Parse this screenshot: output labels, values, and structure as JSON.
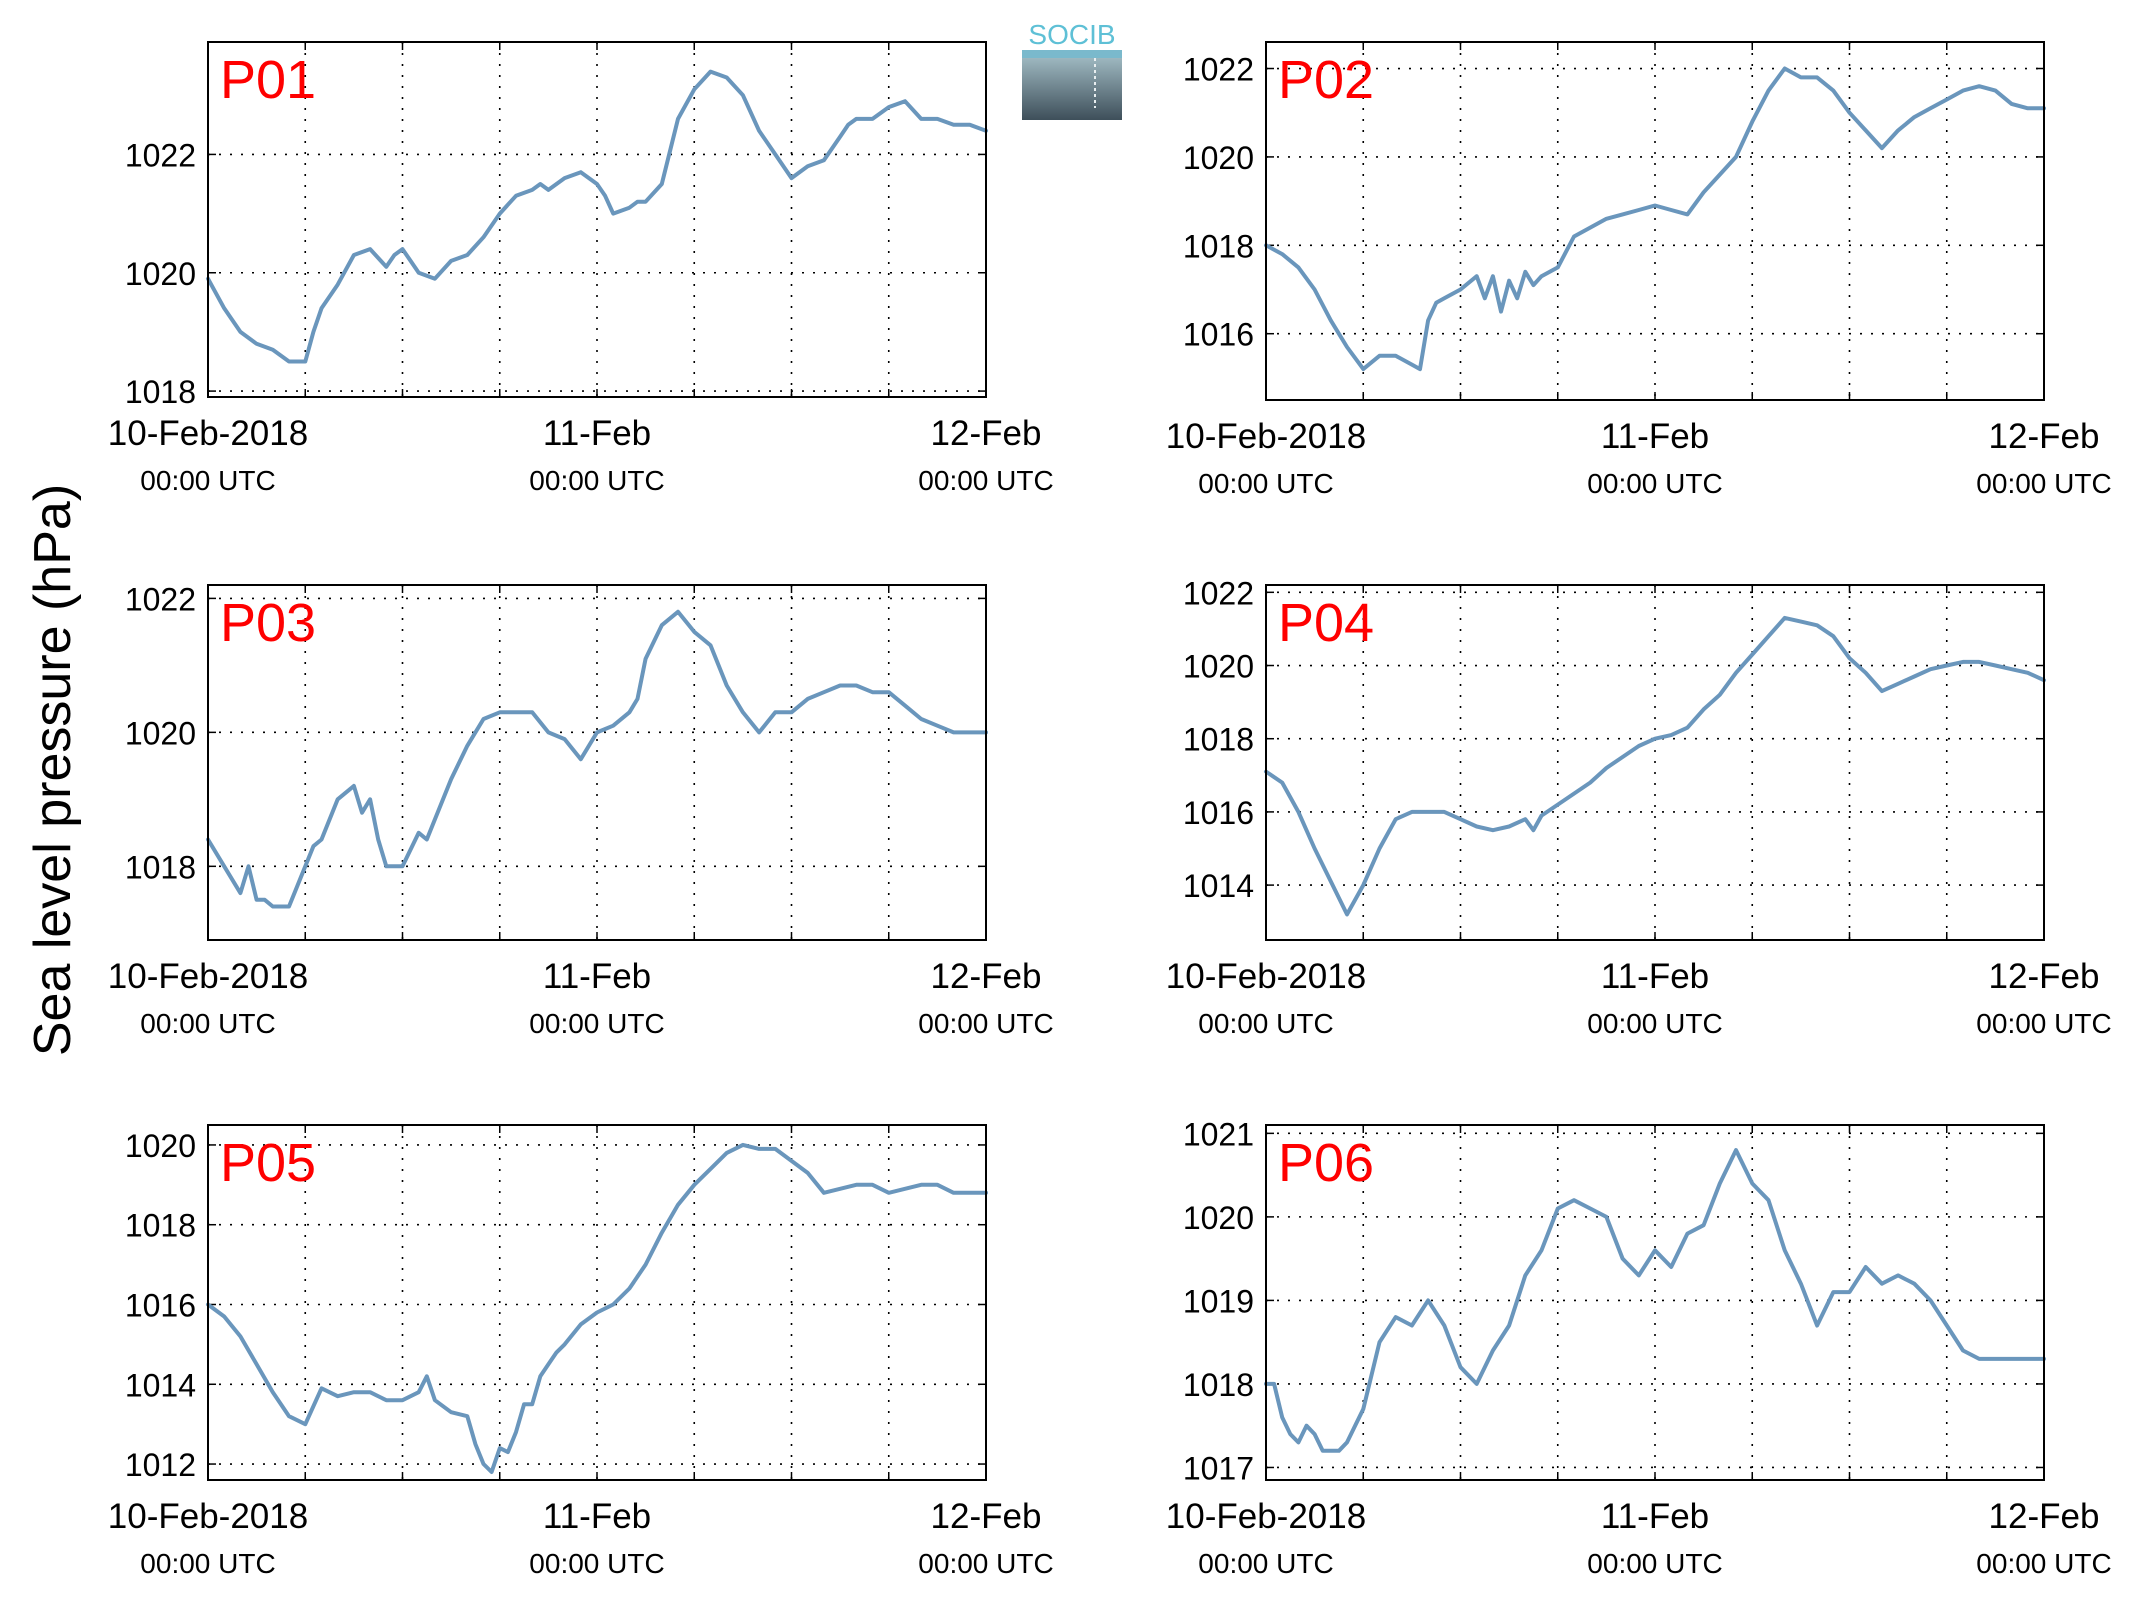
{
  "figure": {
    "ylabel": "Sea level pressure (hPa)",
    "logo_text": "SOCIB",
    "colors": {
      "line": "#6a96bc",
      "panel_label": "#ff0000",
      "grid": "#000000"
    }
  },
  "chart_data": [
    {
      "type": "line",
      "panel_label": "P01",
      "x_unit": "hours since 10-Feb-2018 00:00 UTC",
      "x_ticks": [
        {
          "value": 0,
          "date": "10-Feb-2018",
          "time": "00:00 UTC"
        },
        {
          "value": 24,
          "date": "11-Feb",
          "time": "00:00 UTC"
        },
        {
          "value": 48,
          "date": "12-Feb",
          "time": "00:00 UTC"
        }
      ],
      "xlim": [
        0,
        48
      ],
      "ylim": [
        1017.9,
        1023.9
      ],
      "yticks": [
        1018,
        1020,
        1022
      ],
      "grid": true,
      "x": [
        0,
        1,
        2,
        3,
        4,
        5,
        5.5,
        6,
        6.5,
        7,
        8,
        9,
        10,
        11,
        11.5,
        12,
        12.5,
        13,
        14,
        15,
        16,
        17,
        18,
        19,
        20,
        20.5,
        21,
        22,
        23,
        24,
        24.5,
        25,
        26,
        26.5,
        27,
        28,
        29,
        30,
        31,
        32,
        33,
        34,
        35,
        36,
        37,
        38,
        39,
        39.5,
        40,
        41,
        42,
        43,
        44,
        45,
        46,
        47,
        48
      ],
      "y": [
        1019.9,
        1019.4,
        1019.0,
        1018.8,
        1018.7,
        1018.5,
        1018.5,
        1018.5,
        1019.0,
        1019.4,
        1019.8,
        1020.3,
        1020.4,
        1020.1,
        1020.3,
        1020.4,
        1020.2,
        1020.0,
        1019.9,
        1020.2,
        1020.3,
        1020.6,
        1021.0,
        1021.3,
        1021.4,
        1021.5,
        1021.4,
        1021.6,
        1021.7,
        1021.5,
        1021.3,
        1021.0,
        1021.1,
        1021.2,
        1021.2,
        1021.5,
        1022.6,
        1023.1,
        1023.4,
        1023.3,
        1023.0,
        1022.4,
        1022.0,
        1021.6,
        1021.8,
        1021.9,
        1022.3,
        1022.5,
        1022.6,
        1022.6,
        1022.8,
        1022.9,
        1022.6,
        1022.6,
        1022.5,
        1022.5,
        1022.4
      ]
    },
    {
      "type": "line",
      "panel_label": "P02",
      "x_unit": "hours since 10-Feb-2018 00:00 UTC",
      "x_ticks": [
        {
          "value": 0,
          "date": "10-Feb-2018",
          "time": "00:00 UTC"
        },
        {
          "value": 24,
          "date": "11-Feb",
          "time": "00:00 UTC"
        },
        {
          "value": 48,
          "date": "12-Feb",
          "time": "00:00 UTC"
        }
      ],
      "xlim": [
        0,
        48
      ],
      "ylim": [
        1014.5,
        1022.6
      ],
      "yticks": [
        1016,
        1018,
        1020,
        1022
      ],
      "grid": true,
      "x": [
        0,
        1,
        2,
        3,
        4,
        5,
        6,
        7,
        8,
        9,
        9.5,
        10,
        10.5,
        11,
        12,
        13,
        13.5,
        14,
        14.5,
        15,
        15.5,
        16,
        16.5,
        17,
        18,
        19,
        20,
        21,
        22,
        23,
        24,
        25,
        26,
        27,
        28,
        29,
        30,
        31,
        32,
        33,
        34,
        35,
        36,
        37,
        38,
        39,
        40,
        41,
        42,
        43,
        44,
        45,
        46,
        47,
        48
      ],
      "y": [
        1018.0,
        1017.8,
        1017.5,
        1017.0,
        1016.3,
        1015.7,
        1015.2,
        1015.5,
        1015.5,
        1015.3,
        1015.2,
        1016.3,
        1016.7,
        1016.8,
        1017.0,
        1017.3,
        1016.8,
        1017.3,
        1016.5,
        1017.2,
        1016.8,
        1017.4,
        1017.1,
        1017.3,
        1017.5,
        1018.2,
        1018.4,
        1018.6,
        1018.7,
        1018.8,
        1018.9,
        1018.8,
        1018.7,
        1019.2,
        1019.6,
        1020.0,
        1020.8,
        1021.5,
        1022.0,
        1021.8,
        1021.8,
        1021.5,
        1021.0,
        1020.6,
        1020.2,
        1020.6,
        1020.9,
        1021.1,
        1021.3,
        1021.5,
        1021.6,
        1021.5,
        1021.2,
        1021.1,
        1021.1
      ]
    },
    {
      "type": "line",
      "panel_label": "P03",
      "x_unit": "hours since 10-Feb-2018 00:00 UTC",
      "x_ticks": [
        {
          "value": 0,
          "date": "10-Feb-2018",
          "time": "00:00 UTC"
        },
        {
          "value": 24,
          "date": "11-Feb",
          "time": "00:00 UTC"
        },
        {
          "value": 48,
          "date": "12-Feb",
          "time": "00:00 UTC"
        }
      ],
      "xlim": [
        0,
        48
      ],
      "ylim": [
        1016.9,
        1022.2
      ],
      "yticks": [
        1018,
        1020,
        1022
      ],
      "grid": true,
      "x": [
        0,
        1,
        2,
        2.5,
        3,
        3.5,
        4,
        5,
        6,
        6.5,
        7,
        8,
        9,
        9.5,
        10,
        10.5,
        11,
        12,
        13,
        13.5,
        14,
        15,
        16,
        17,
        18,
        19,
        20,
        21,
        22,
        23,
        24,
        25,
        26,
        26.5,
        27,
        28,
        29,
        30,
        31,
        32,
        33,
        34,
        35,
        36,
        37,
        38,
        39,
        40,
        41,
        42,
        43,
        44,
        45,
        46,
        47,
        48
      ],
      "y": [
        1018.4,
        1018.0,
        1017.6,
        1018.0,
        1017.5,
        1017.5,
        1017.4,
        1017.4,
        1018.0,
        1018.3,
        1018.4,
        1019.0,
        1019.2,
        1018.8,
        1019.0,
        1018.4,
        1018.0,
        1018.0,
        1018.5,
        1018.4,
        1018.7,
        1019.3,
        1019.8,
        1020.2,
        1020.3,
        1020.3,
        1020.3,
        1020.0,
        1019.9,
        1019.6,
        1020.0,
        1020.1,
        1020.3,
        1020.5,
        1021.1,
        1021.6,
        1021.8,
        1021.5,
        1021.3,
        1020.7,
        1020.3,
        1020.0,
        1020.3,
        1020.3,
        1020.5,
        1020.6,
        1020.7,
        1020.7,
        1020.6,
        1020.6,
        1020.4,
        1020.2,
        1020.1,
        1020.0,
        1020.0,
        1020.0
      ]
    },
    {
      "type": "line",
      "panel_label": "P04",
      "x_unit": "hours since 10-Feb-2018 00:00 UTC",
      "x_ticks": [
        {
          "value": 0,
          "date": "10-Feb-2018",
          "time": "00:00 UTC"
        },
        {
          "value": 24,
          "date": "11-Feb",
          "time": "00:00 UTC"
        },
        {
          "value": 48,
          "date": "12-Feb",
          "time": "00:00 UTC"
        }
      ],
      "xlim": [
        0,
        48
      ],
      "ylim": [
        1012.5,
        1022.2
      ],
      "yticks": [
        1014,
        1016,
        1018,
        1020,
        1022
      ],
      "grid": true,
      "x": [
        0,
        1,
        2,
        3,
        4,
        5,
        6,
        7,
        8,
        9,
        10,
        11,
        12,
        13,
        14,
        15,
        16,
        16.5,
        17,
        18,
        19,
        20,
        21,
        22,
        23,
        24,
        25,
        26,
        27,
        28,
        29,
        30,
        31,
        32,
        33,
        34,
        35,
        36,
        37,
        38,
        39,
        40,
        41,
        42,
        43,
        44,
        45,
        46,
        47,
        48
      ],
      "y": [
        1017.1,
        1016.8,
        1016.0,
        1015.0,
        1014.1,
        1013.2,
        1014.0,
        1015.0,
        1015.8,
        1016.0,
        1016.0,
        1016.0,
        1015.8,
        1015.6,
        1015.5,
        1015.6,
        1015.8,
        1015.5,
        1015.9,
        1016.2,
        1016.5,
        1016.8,
        1017.2,
        1017.5,
        1017.8,
        1018.0,
        1018.1,
        1018.3,
        1018.8,
        1019.2,
        1019.8,
        1020.3,
        1020.8,
        1021.3,
        1021.2,
        1021.1,
        1020.8,
        1020.2,
        1019.8,
        1019.3,
        1019.5,
        1019.7,
        1019.9,
        1020.0,
        1020.1,
        1020.1,
        1020.0,
        1019.9,
        1019.8,
        1019.6
      ]
    },
    {
      "type": "line",
      "panel_label": "P05",
      "x_unit": "hours since 10-Feb-2018 00:00 UTC",
      "x_ticks": [
        {
          "value": 0,
          "date": "10-Feb-2018",
          "time": "00:00 UTC"
        },
        {
          "value": 24,
          "date": "11-Feb",
          "time": "00:00 UTC"
        },
        {
          "value": 48,
          "date": "12-Feb",
          "time": "00:00 UTC"
        }
      ],
      "xlim": [
        0,
        48
      ],
      "ylim": [
        1011.6,
        1020.5
      ],
      "yticks": [
        1012,
        1014,
        1016,
        1018,
        1020
      ],
      "grid": true,
      "x": [
        0,
        1,
        2,
        3,
        4,
        5,
        6,
        7,
        8,
        9,
        10,
        11,
        12,
        13,
        13.5,
        14,
        15,
        16,
        16.5,
        17,
        17.5,
        18,
        18.5,
        19,
        19.5,
        20,
        20.5,
        21,
        21.5,
        22,
        23,
        24,
        25,
        26,
        27,
        28,
        29,
        30,
        31,
        32,
        33,
        34,
        35,
        36,
        37,
        38,
        39,
        40,
        41,
        42,
        43,
        44,
        45,
        46,
        47,
        48
      ],
      "y": [
        1016.0,
        1015.7,
        1015.2,
        1014.5,
        1013.8,
        1013.2,
        1013.0,
        1013.9,
        1013.7,
        1013.8,
        1013.8,
        1013.6,
        1013.6,
        1013.8,
        1014.2,
        1013.6,
        1013.3,
        1013.2,
        1012.5,
        1012.0,
        1011.8,
        1012.4,
        1012.3,
        1012.8,
        1013.5,
        1013.5,
        1014.2,
        1014.5,
        1014.8,
        1015.0,
        1015.5,
        1015.8,
        1016.0,
        1016.4,
        1017.0,
        1017.8,
        1018.5,
        1019.0,
        1019.4,
        1019.8,
        1020.0,
        1019.9,
        1019.9,
        1019.6,
        1019.3,
        1018.8,
        1018.9,
        1019.0,
        1019.0,
        1018.8,
        1018.9,
        1019.0,
        1019.0,
        1018.8,
        1018.8,
        1018.8
      ]
    },
    {
      "type": "line",
      "panel_label": "P06",
      "x_unit": "hours since 10-Feb-2018 00:00 UTC",
      "x_ticks": [
        {
          "value": 0,
          "date": "10-Feb-2018",
          "time": "00:00 UTC"
        },
        {
          "value": 24,
          "date": "11-Feb",
          "time": "00:00 UTC"
        },
        {
          "value": 48,
          "date": "12-Feb",
          "time": "00:00 UTC"
        }
      ],
      "xlim": [
        0,
        48
      ],
      "ylim": [
        1016.85,
        1021.1
      ],
      "yticks": [
        1017,
        1018,
        1019,
        1020,
        1021
      ],
      "grid": true,
      "x": [
        0,
        0.5,
        1,
        1.5,
        2,
        2.5,
        3,
        3.5,
        4,
        4.5,
        5,
        5.5,
        6,
        7,
        8,
        9,
        10,
        11,
        12,
        13,
        14,
        15,
        16,
        17,
        18,
        19,
        20,
        21,
        22,
        23,
        24,
        25,
        26,
        27,
        28,
        29,
        30,
        31,
        32,
        33,
        34,
        35,
        36,
        37,
        38,
        39,
        40,
        41,
        42,
        43,
        44,
        45,
        46,
        47,
        48
      ],
      "y": [
        1018.0,
        1018.0,
        1017.6,
        1017.4,
        1017.3,
        1017.5,
        1017.4,
        1017.2,
        1017.2,
        1017.2,
        1017.3,
        1017.5,
        1017.7,
        1018.5,
        1018.8,
        1018.7,
        1019.0,
        1018.7,
        1018.2,
        1018.0,
        1018.4,
        1018.7,
        1019.3,
        1019.6,
        1020.1,
        1020.2,
        1020.1,
        1020.0,
        1019.5,
        1019.3,
        1019.6,
        1019.4,
        1019.8,
        1019.9,
        1020.4,
        1020.8,
        1020.4,
        1020.2,
        1019.6,
        1019.2,
        1018.7,
        1019.1,
        1019.1,
        1019.4,
        1019.2,
        1019.3,
        1019.2,
        1019.0,
        1018.7,
        1018.4,
        1018.3,
        1018.3,
        1018.3,
        1018.3,
        1018.3
      ]
    }
  ]
}
